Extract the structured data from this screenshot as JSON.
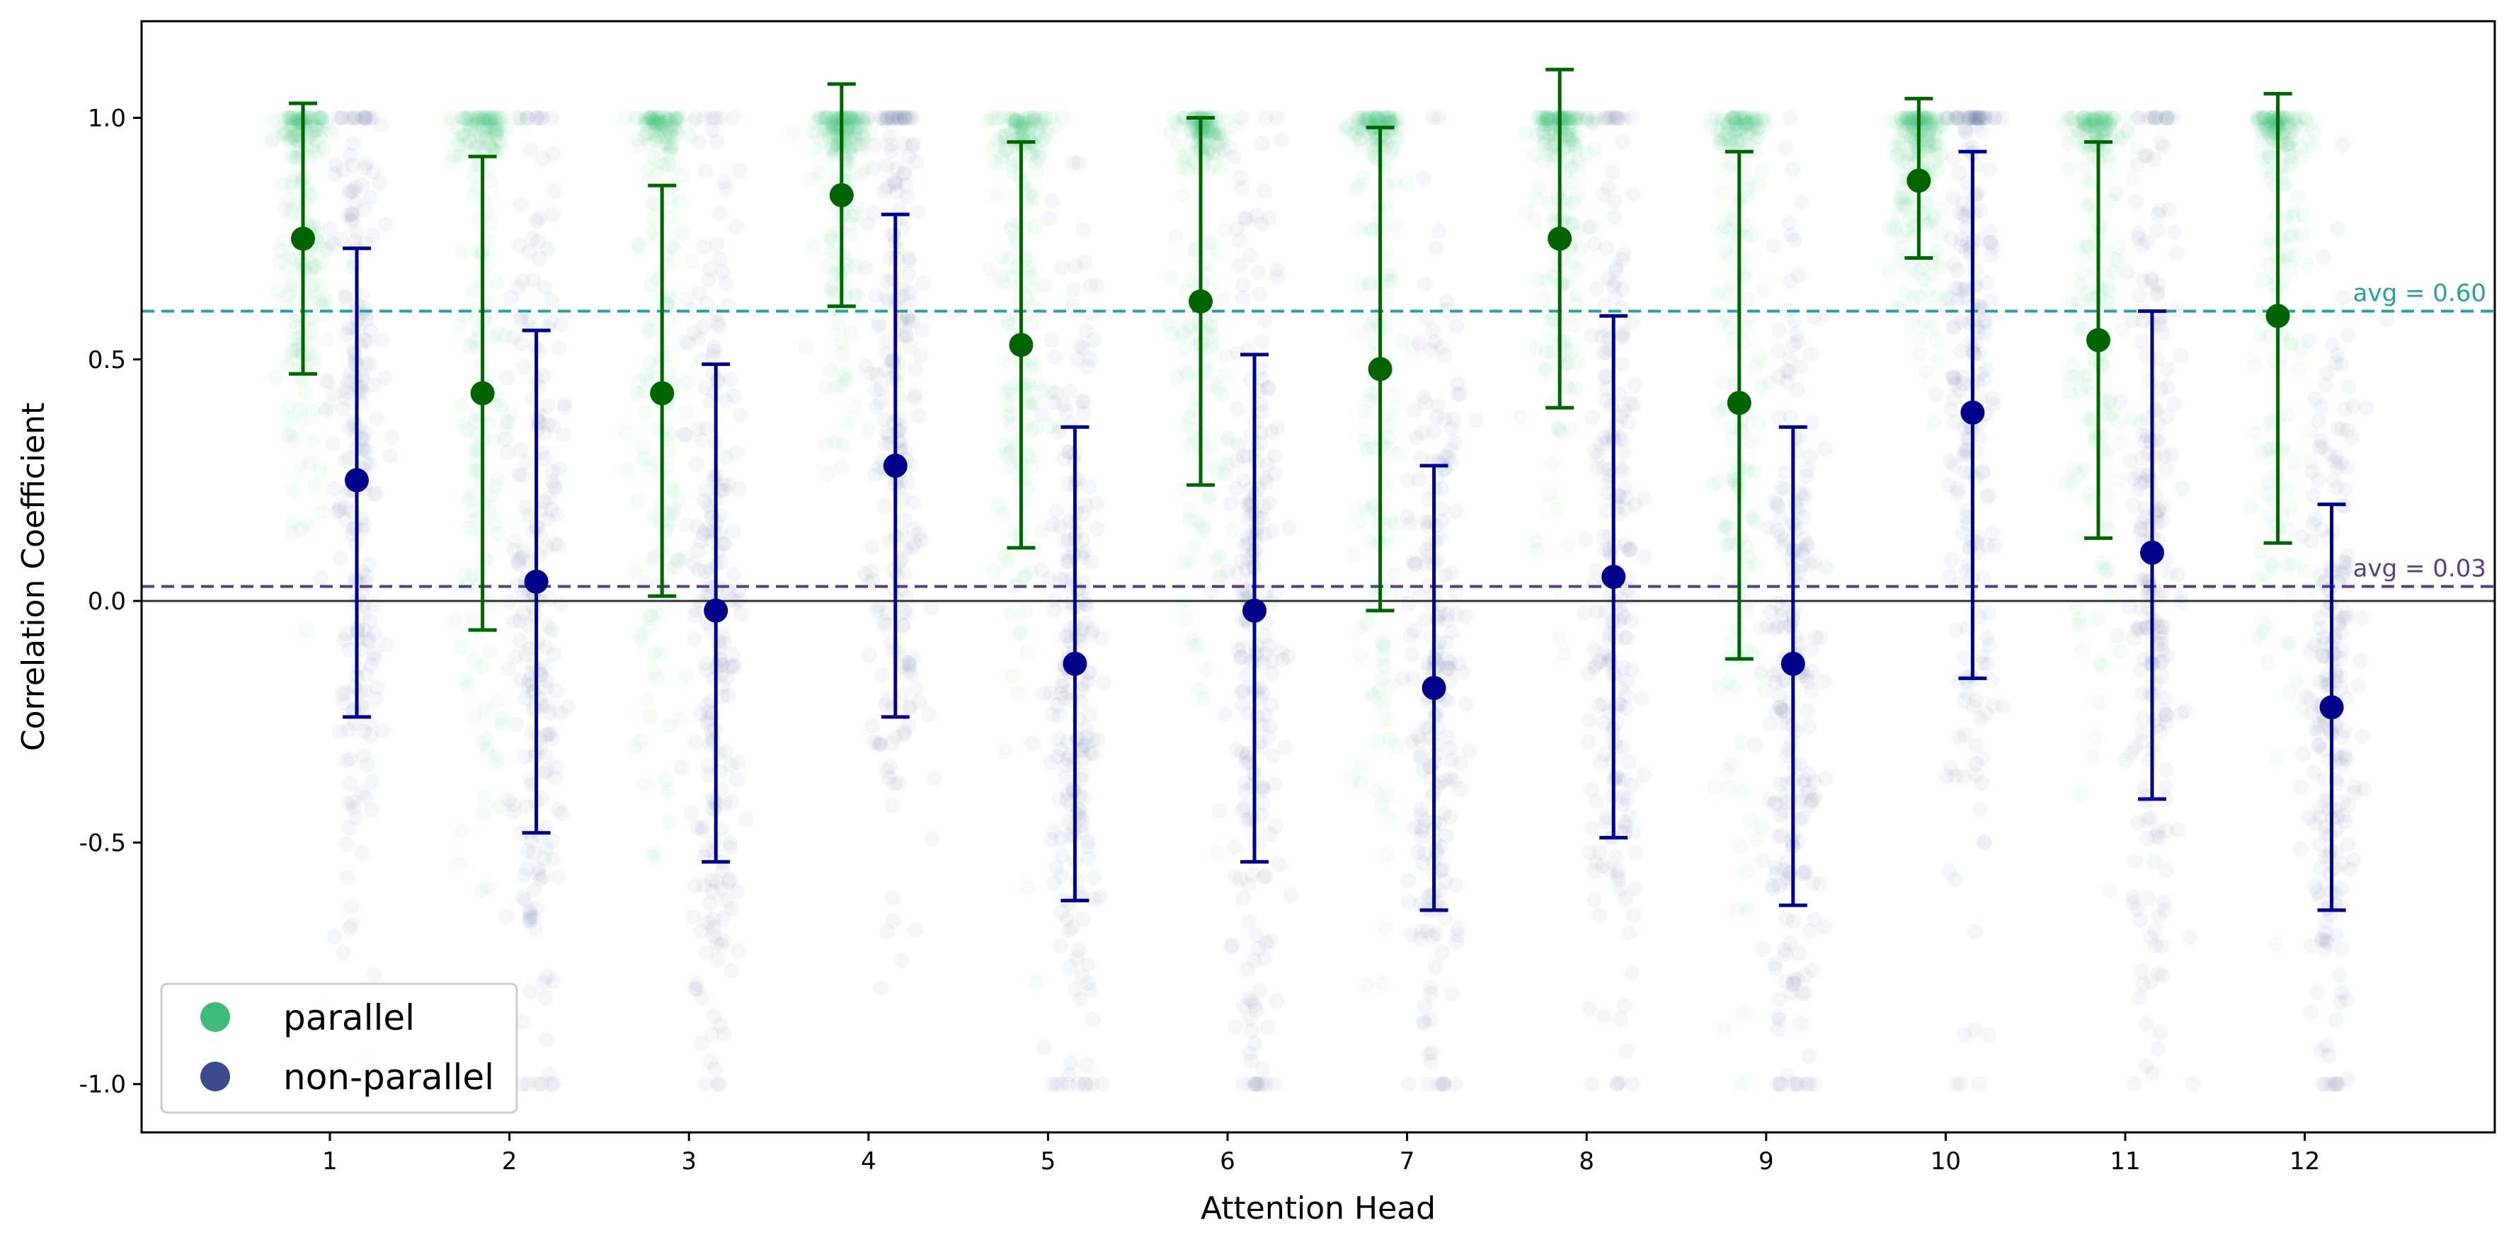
{
  "chart_data": {
    "type": "scatter",
    "xlabel": "Attention Head",
    "ylabel": "Correlation Coefficient",
    "categories": [
      "1",
      "2",
      "3",
      "4",
      "5",
      "6",
      "7",
      "8",
      "9",
      "10",
      "11",
      "12"
    ],
    "ylim": [
      -1.1,
      1.2
    ],
    "y_ticks": [
      1.0,
      0.5,
      0.0,
      -0.5,
      -1.0
    ],
    "y_tick_labels": [
      "1.0",
      "0.5",
      "0.0",
      "-0.5",
      "-1.0"
    ],
    "grid": false,
    "legend_position": "bottom-left",
    "series": [
      {
        "name": "parallel",
        "color": "#3dbb78",
        "mean_color": "#006400",
        "means": [
          0.75,
          0.43,
          0.43,
          0.84,
          0.53,
          0.62,
          0.48,
          0.75,
          0.41,
          0.87,
          0.54,
          0.59
        ],
        "err_low": [
          0.47,
          -0.06,
          0.01,
          0.61,
          0.11,
          0.24,
          -0.02,
          0.4,
          -0.12,
          0.71,
          0.13,
          0.12
        ],
        "err_high": [
          1.03,
          0.92,
          0.86,
          1.07,
          0.95,
          1.0,
          0.98,
          1.1,
          0.93,
          1.04,
          0.95,
          1.05
        ],
        "average": 0.6,
        "average_label": "avg = 0.60",
        "average_color": "#2aa198"
      },
      {
        "name": "non-parallel",
        "color": "#3b4a8a",
        "mean_color": "#00008b",
        "means": [
          0.25,
          0.04,
          -0.02,
          0.28,
          -0.13,
          -0.02,
          -0.18,
          0.05,
          -0.13,
          0.39,
          0.1,
          -0.22
        ],
        "err_low": [
          -0.24,
          -0.48,
          -0.54,
          -0.24,
          -0.62,
          -0.54,
          -0.64,
          -0.49,
          -0.63,
          -0.16,
          -0.41,
          -0.64
        ],
        "err_high": [
          0.73,
          0.56,
          0.49,
          0.8,
          0.36,
          0.51,
          0.28,
          0.59,
          0.36,
          0.93,
          0.6,
          0.2
        ],
        "average": 0.03,
        "average_label": "avg = 0.03",
        "average_color": "#5a3e80"
      }
    ]
  }
}
